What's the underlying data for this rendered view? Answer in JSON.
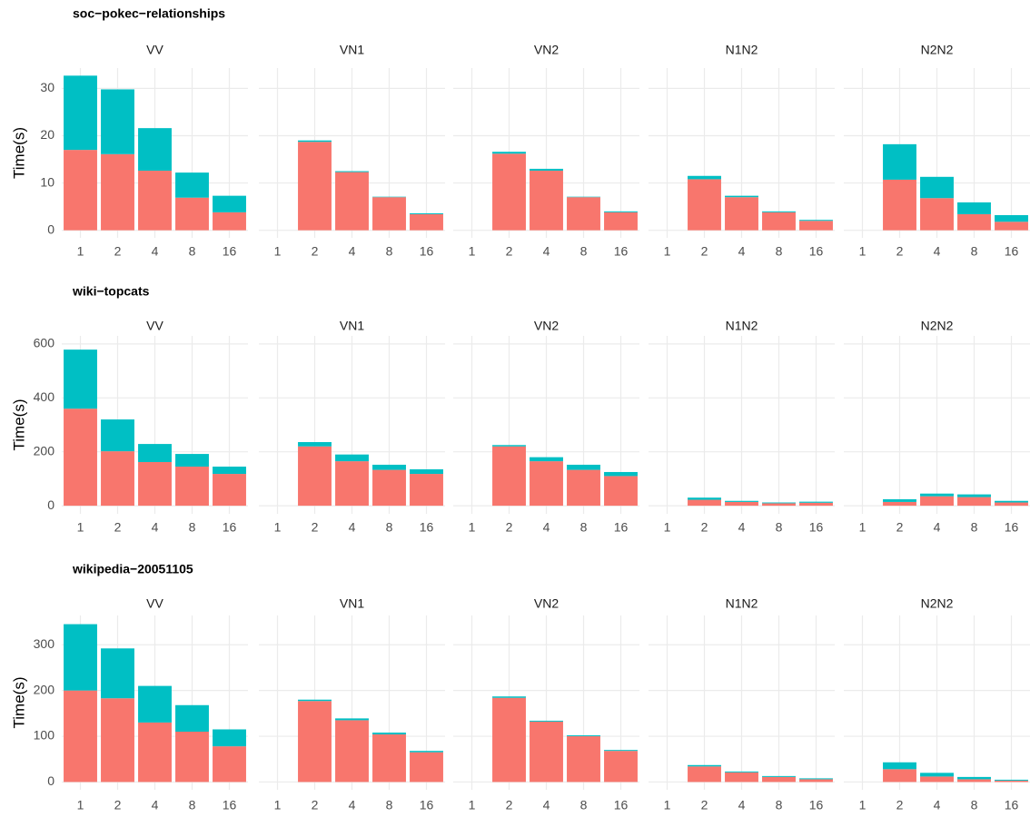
{
  "chart_data": [
    {
      "type": "bar",
      "stacked": true,
      "title": "soc−pokec−relationships",
      "ylabel": "Time(s)",
      "categories": [
        "1",
        "2",
        "4",
        "8",
        "16"
      ],
      "ylim": [
        -1.6,
        34.3
      ],
      "yticks": [
        0,
        10,
        20,
        30
      ],
      "grid": true,
      "facets": [
        {
          "title": "VV",
          "series": [
            {
              "color": "#F8766D",
              "values": [
                17,
                16.1,
                12.6,
                6.9,
                3.8
              ]
            },
            {
              "color": "#00BFC4",
              "values": [
                15.7,
                13.7,
                9,
                5.3,
                3.5
              ]
            }
          ]
        },
        {
          "title": "VN1",
          "series": [
            {
              "color": "#F8766D",
              "values": [
                null,
                18.7,
                12.3,
                7,
                3.4
              ]
            },
            {
              "color": "#00BFC4",
              "values": [
                null,
                0.3,
                0.2,
                0.1,
                0.2
              ]
            }
          ]
        },
        {
          "title": "VN2",
          "series": [
            {
              "color": "#F8766D",
              "values": [
                null,
                16.2,
                12.6,
                7,
                3.8
              ]
            },
            {
              "color": "#00BFC4",
              "values": [
                null,
                0.4,
                0.4,
                0.1,
                0.2
              ]
            }
          ]
        },
        {
          "title": "N1N2",
          "series": [
            {
              "color": "#F8766D",
              "values": [
                null,
                10.8,
                7,
                3.8,
                2
              ]
            },
            {
              "color": "#00BFC4",
              "values": [
                null,
                0.7,
                0.3,
                0.2,
                0.2
              ]
            }
          ]
        },
        {
          "title": "N2N2",
          "series": [
            {
              "color": "#F8766D",
              "values": [
                null,
                10.7,
                6.8,
                3.4,
                1.8
              ]
            },
            {
              "color": "#00BFC4",
              "values": [
                null,
                7.5,
                4.5,
                2.5,
                1.4
              ]
            }
          ]
        }
      ]
    },
    {
      "type": "bar",
      "stacked": true,
      "title": "wiki−topcats",
      "ylabel": "Time(s)",
      "categories": [
        "1",
        "2",
        "4",
        "8",
        "16"
      ],
      "ylim": [
        -30,
        630
      ],
      "yticks": [
        0,
        200,
        400,
        600
      ],
      "grid": true,
      "facets": [
        {
          "title": "VV",
          "series": [
            {
              "color": "#F8766D",
              "values": [
                360,
                202,
                162,
                145,
                118
              ]
            },
            {
              "color": "#00BFC4",
              "values": [
                219,
                118,
                67,
                47,
                27
              ]
            }
          ]
        },
        {
          "title": "VN1",
          "series": [
            {
              "color": "#F8766D",
              "values": [
                null,
                220,
                165,
                133,
                118
              ]
            },
            {
              "color": "#00BFC4",
              "values": [
                null,
                16,
                25,
                19,
                17
              ]
            }
          ]
        },
        {
          "title": "VN2",
          "series": [
            {
              "color": "#F8766D",
              "values": [
                null,
                220,
                165,
                133,
                110
              ]
            },
            {
              "color": "#00BFC4",
              "values": [
                null,
                5,
                15,
                19,
                15
              ]
            }
          ]
        },
        {
          "title": "N1N2",
          "series": [
            {
              "color": "#F8766D",
              "values": [
                null,
                22,
                14,
                9,
                11
              ]
            },
            {
              "color": "#00BFC4",
              "values": [
                null,
                8,
                4,
                3,
                4
              ]
            }
          ]
        },
        {
          "title": "N2N2",
          "series": [
            {
              "color": "#F8766D",
              "values": [
                null,
                14,
                35,
                32,
                12
              ]
            },
            {
              "color": "#00BFC4",
              "values": [
                null,
                10,
                10,
                10,
                6
              ]
            }
          ]
        }
      ]
    },
    {
      "type": "bar",
      "stacked": true,
      "title": "wikipedia−20051105",
      "ylabel": "Time(s)",
      "categories": [
        "1",
        "2",
        "4",
        "8",
        "16"
      ],
      "ylim": [
        -17,
        364
      ],
      "yticks": [
        0,
        100,
        200,
        300
      ],
      "grid": true,
      "facets": [
        {
          "title": "VV",
          "series": [
            {
              "color": "#F8766D",
              "values": [
                200,
                183,
                130,
                110,
                78
              ]
            },
            {
              "color": "#00BFC4",
              "values": [
                145,
                109,
                80,
                58,
                37
              ]
            }
          ]
        },
        {
          "title": "VN1",
          "series": [
            {
              "color": "#F8766D",
              "values": [
                null,
                177,
                135,
                104,
                65
              ]
            },
            {
              "color": "#00BFC4",
              "values": [
                null,
                3,
                4,
                4,
                3
              ]
            }
          ]
        },
        {
          "title": "VN2",
          "series": [
            {
              "color": "#F8766D",
              "values": [
                null,
                184,
                132,
                100,
                68
              ]
            },
            {
              "color": "#00BFC4",
              "values": [
                null,
                3,
                2,
                2,
                2
              ]
            }
          ]
        },
        {
          "title": "N1N2",
          "series": [
            {
              "color": "#F8766D",
              "values": [
                null,
                34,
                21,
                11,
                6
              ]
            },
            {
              "color": "#00BFC4",
              "values": [
                null,
                3,
                2,
                2,
                2
              ]
            }
          ]
        },
        {
          "title": "N2N2",
          "series": [
            {
              "color": "#F8766D",
              "values": [
                null,
                28,
                12,
                6,
                3
              ]
            },
            {
              "color": "#00BFC4",
              "values": [
                null,
                15,
                8,
                5,
                2
              ]
            }
          ]
        }
      ]
    }
  ]
}
